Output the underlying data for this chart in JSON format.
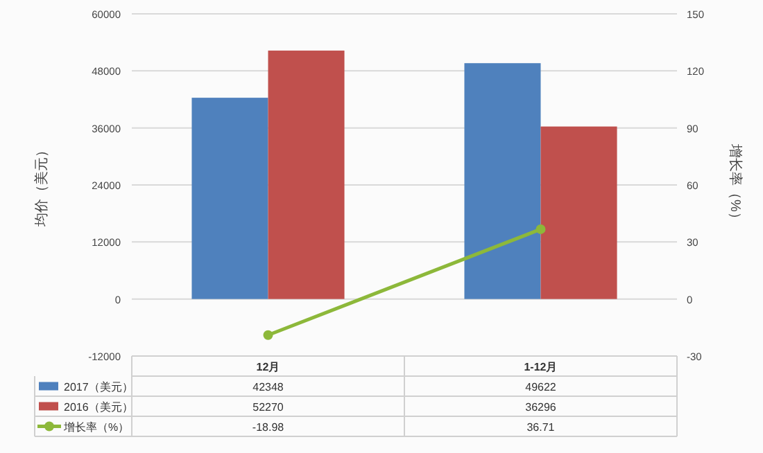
{
  "chart_data": {
    "type": "bar",
    "ylabel": "均价（美元）",
    "y2label": "增长率（%）",
    "categories": [
      "12月",
      "1-12月"
    ],
    "series": [
      {
        "name": "2017（美元）",
        "color": "#4f81bd",
        "values": [
          42348,
          49622
        ]
      },
      {
        "name": "2016（美元）",
        "color": "#c0504d",
        "values": [
          52270,
          36296
        ]
      },
      {
        "name": "增长率（%）",
        "type": "line",
        "axis": "y2",
        "color": "#8db83a",
        "marker": "circle",
        "values": [
          -18.98,
          36.71
        ]
      }
    ],
    "ylim": [
      -12000,
      60000
    ],
    "yticks": [
      -12000,
      0,
      12000,
      24000,
      36000,
      48000,
      60000
    ],
    "y2lim": [
      -30,
      150
    ],
    "y2ticks": [
      -30,
      0,
      30,
      60,
      90,
      120,
      150
    ],
    "grid": "y",
    "legend": "bottom",
    "data_labels": true
  }
}
